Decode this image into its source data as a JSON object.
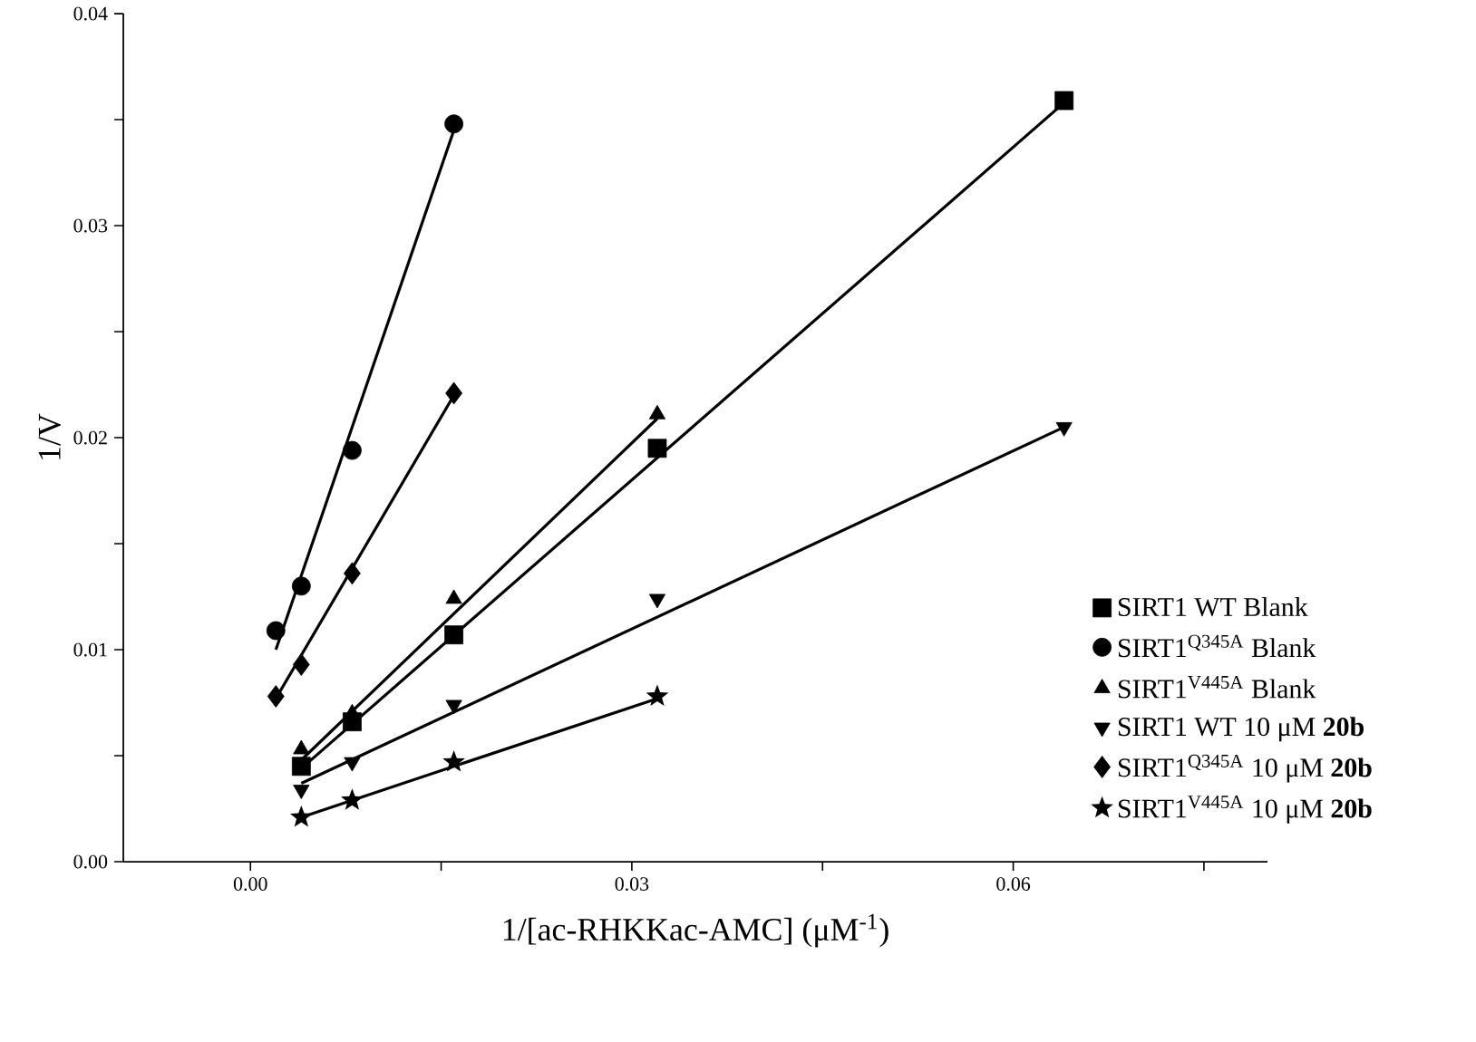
{
  "chart_data": {
    "type": "scatter",
    "xlabel": "1/[ac-RHKKac-AMC] (μM$^{-1}$)",
    "ylabel": "1/V",
    "xlim": [
      -0.01,
      0.08
    ],
    "ylim": [
      0,
      0.04
    ],
    "xticks": [
      {
        "value": 0,
        "label": "0.00"
      },
      {
        "value": 0.015,
        "label": null
      },
      {
        "value": 0.03,
        "label": "0.03"
      },
      {
        "value": 0.045,
        "label": null
      },
      {
        "value": 0.06,
        "label": "0.06"
      },
      {
        "value": 0.075,
        "label": null
      }
    ],
    "yticks": [
      {
        "value": 0,
        "label": "0.00"
      },
      {
        "value": 0.005,
        "label": null
      },
      {
        "value": 0.01,
        "label": "0.01"
      },
      {
        "value": 0.015,
        "label": null
      },
      {
        "value": 0.02,
        "label": "0.02"
      },
      {
        "value": 0.025,
        "label": null
      },
      {
        "value": 0.03,
        "label": "0.03"
      },
      {
        "value": 0.035,
        "label": null
      },
      {
        "value": 0.04,
        "label": "0.04"
      }
    ],
    "grid": false,
    "legend": "bottom right",
    "series": [
      {
        "name": "SIRT1 WT Blank",
        "marker": "square",
        "color": "#000000",
        "x": [
          0.004,
          0.008,
          0.016,
          0.032,
          0.064
        ],
        "values": [
          0.0045,
          0.0066,
          0.0107,
          0.0195,
          0.0359
        ]
      },
      {
        "name": "SIRT1$^{Q345A}$ Blank",
        "marker": "circle",
        "color": "#000000",
        "x": [
          0.002,
          0.004,
          0.008,
          0.016
        ],
        "values": [
          0.0109,
          0.013,
          0.0194,
          0.0348
        ]
      },
      {
        "name": "SIRT1$^{V445A}$ Blank",
        "marker": "triangle",
        "color": "#000000",
        "x": [
          0.004,
          0.008,
          0.016,
          0.032
        ],
        "values": [
          0.0053,
          0.007,
          0.0124,
          0.0211
        ]
      },
      {
        "name": "SIRT1 WT 10 μM **20b**",
        "marker": "triangle-down",
        "color": "#000000",
        "x": [
          0.004,
          0.008,
          0.016,
          0.032,
          0.064
        ],
        "values": [
          0.0034,
          0.0047,
          0.0074,
          0.0124,
          0.0205
        ]
      },
      {
        "name": "SIRT1$^{Q345A}$ 10 μM **20b**",
        "marker": "diamond",
        "color": "#000000",
        "x": [
          0.002,
          0.004,
          0.008,
          0.016
        ],
        "values": [
          0.0078,
          0.0093,
          0.0136,
          0.0221
        ]
      },
      {
        "name": "SIRT1$^{V445A}$ 10 μM **20b**",
        "marker": "star",
        "color": "#000000",
        "x": [
          0.004,
          0.008,
          0.016,
          0.032
        ],
        "values": [
          0.0021,
          0.0029,
          0.0047,
          0.0078
        ]
      },
      {
        "type": "line",
        "marker": "none",
        "line_style": "solid",
        "color": "#000000",
        "x": [
          0.004,
          0.064
        ],
        "values": [
          0.0044,
          0.0358
        ]
      },
      {
        "type": "line",
        "marker": "none",
        "line_style": "solid",
        "color": "#000000",
        "x": [
          0.002,
          0.016
        ],
        "values": [
          0.01,
          0.0345
        ]
      },
      {
        "type": "line",
        "marker": "none",
        "line_style": "solid",
        "color": "#000000",
        "x": [
          0.004,
          0.032
        ],
        "values": [
          0.0048,
          0.0209
        ]
      },
      {
        "type": "line",
        "marker": "none",
        "line_style": "solid",
        "color": "#000000",
        "x": [
          0.004,
          0.064
        ],
        "values": [
          0.0037,
          0.0205
        ]
      },
      {
        "type": "line",
        "marker": "none",
        "line_style": "solid",
        "color": "#000000",
        "x": [
          0.002,
          0.016
        ],
        "values": [
          0.0077,
          0.022
        ]
      },
      {
        "type": "line",
        "marker": "none",
        "line_style": "solid",
        "color": "#000000",
        "x": [
          0.004,
          0.032
        ],
        "values": [
          0.0021,
          0.0077
        ]
      }
    ]
  }
}
